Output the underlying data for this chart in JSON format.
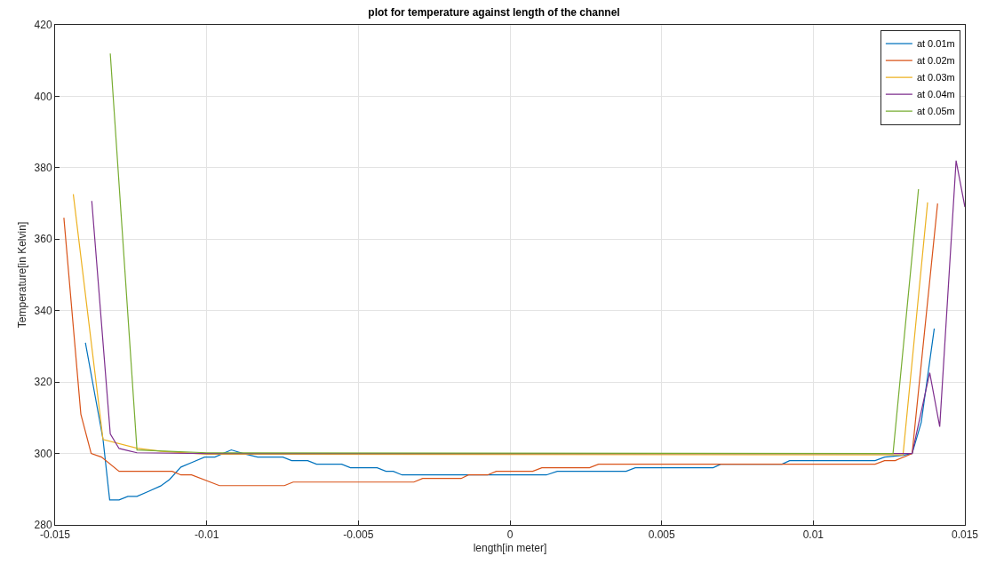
{
  "chart_data": {
    "type": "line",
    "title": "plot for temperature against length of the channel",
    "xlabel": "length[in meter]",
    "ylabel": "Temperature[in Kelvin]",
    "xlim": [
      -0.015,
      0.015
    ],
    "xticks": [
      -0.015,
      -0.01,
      -0.005,
      0,
      0.005,
      0.01,
      0.015
    ],
    "ylim": [
      280,
      420
    ],
    "yticks": [
      280,
      300,
      320,
      340,
      360,
      380,
      400,
      420
    ],
    "grid": true,
    "legend": "top right",
    "marker": "none",
    "line_style": "solid",
    "series": [
      {
        "name": "at 0.01m",
        "color": "#0072bd",
        "x": [
          -0.014,
          -0.01342,
          -0.0132,
          -0.01289,
          -0.0126,
          -0.0123,
          -0.01192,
          -0.01152,
          -0.01123,
          -0.01085,
          -0.01046,
          -0.01007,
          -0.00973,
          -0.00919,
          -0.0088,
          -0.00832,
          -0.00749,
          -0.0072,
          -0.00667,
          -0.00638,
          -0.00555,
          -0.00526,
          -0.00438,
          -0.00409,
          -0.00385,
          -0.00356,
          0.0012,
          0.00156,
          0.00383,
          0.00413,
          0.0067,
          0.00695,
          0.00897,
          0.00922,
          0.01204,
          0.01235,
          0.01296,
          0.01326,
          0.01356,
          0.01399
        ],
        "values": [
          331,
          304,
          287,
          287,
          288,
          288,
          289.4,
          290.9,
          292.7,
          296.2,
          297.6,
          299,
          299,
          301,
          300,
          299,
          299,
          298,
          298,
          297,
          297,
          296,
          296,
          295,
          295,
          294,
          294,
          295,
          295,
          296,
          296,
          297,
          297,
          298,
          298,
          299,
          299.5,
          300,
          308.7,
          335
        ]
      },
      {
        "name": "at 0.02m",
        "color": "#d95319",
        "x": [
          -0.01471,
          -0.01415,
          -0.01381,
          -0.01347,
          -0.01289,
          -0.01114,
          -0.01085,
          -0.0105,
          -0.00958,
          -0.00744,
          -0.00715,
          -0.00317,
          -0.00288,
          -0.00161,
          -0.00137,
          -0.00074,
          -0.00045,
          0.00075,
          0.00105,
          0.00262,
          0.00292,
          0.01204,
          0.01235,
          0.0127,
          0.01326,
          0.0141
        ],
        "values": [
          366,
          311,
          300,
          299,
          295,
          295,
          294,
          294,
          291,
          291,
          292,
          292,
          293,
          293,
          294,
          294,
          295,
          295,
          296,
          296,
          297,
          297,
          298,
          298,
          300,
          370
        ]
      },
      {
        "name": "at 0.03m",
        "color": "#edb120",
        "x": [
          -0.0144,
          -0.01342,
          -0.0123,
          -0.0115,
          -0.01,
          0.01296,
          0.01377
        ],
        "values": [
          372.6,
          303.9,
          301.5,
          300.6,
          299.8,
          299.6,
          370.3
        ]
      },
      {
        "name": "at 0.04m",
        "color": "#7e2f8e",
        "x": [
          -0.01379,
          -0.01318,
          -0.01289,
          -0.0123,
          -0.01,
          0.01326,
          0.01384,
          0.01417,
          0.01471,
          0.015
        ],
        "values": [
          370.7,
          305.5,
          301.4,
          300.2,
          300,
          300,
          322.6,
          307.5,
          382,
          369
        ]
      },
      {
        "name": "at 0.05m",
        "color": "#77ac30",
        "x": [
          -0.01318,
          -0.0123,
          -0.01,
          0.01263,
          0.01347
        ],
        "values": [
          412,
          301,
          300.2,
          300,
          374
        ]
      }
    ]
  }
}
